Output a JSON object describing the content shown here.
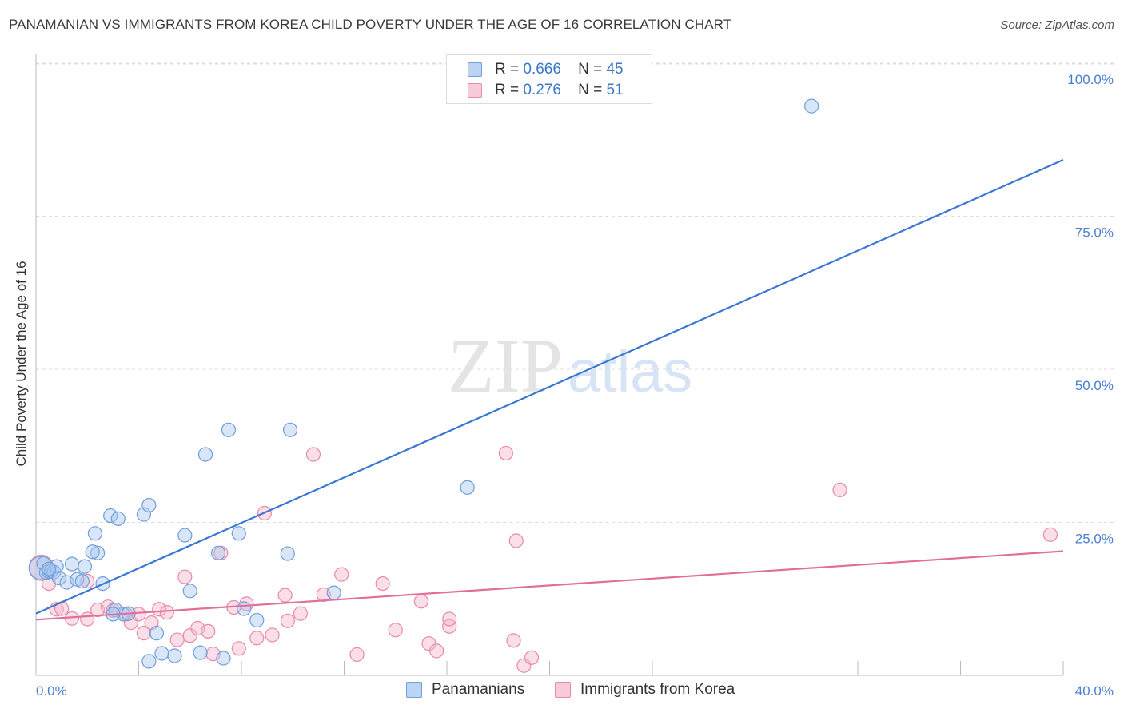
{
  "header": {
    "title": "PANAMANIAN VS IMMIGRANTS FROM KOREA CHILD POVERTY UNDER THE AGE OF 16 CORRELATION CHART",
    "source": "Source: ZipAtlas.com"
  },
  "watermark": {
    "zip": "ZIP",
    "atlas": "atlas"
  },
  "legend_top": {
    "rows": [
      {
        "r_label": "R =",
        "r_value": "0.666",
        "n_label": "N =",
        "n_value": "45"
      },
      {
        "r_label": "R =",
        "r_value": "0.276",
        "n_label": "N =",
        "n_value": "51"
      }
    ]
  },
  "colors": {
    "blue_fill": "#a9c8f0",
    "blue_stroke": "#6f9fdc",
    "blue_line": "#3a78d4",
    "pink_fill": "#f5b8cb",
    "pink_stroke": "#e98aa8",
    "pink_line": "#e0709a",
    "tick_label": "#4a7fd0",
    "grid": "#dddddd"
  },
  "chart_data": {
    "type": "scatter",
    "title": "PANAMANIAN VS IMMIGRANTS FROM KOREA CHILD POVERTY UNDER THE AGE OF 16 CORRELATION CHART",
    "xlabel": "",
    "ylabel": "Child Poverty Under the Age of 16",
    "xlim": [
      0,
      40
    ],
    "ylim": [
      0,
      100
    ],
    "x_tick_labels": [
      {
        "value": 0,
        "label": "0.0%"
      },
      {
        "value": 40,
        "label": "40.0%"
      }
    ],
    "y_tick_labels": [
      {
        "value": 100,
        "label": "100.0%"
      },
      {
        "value": 75,
        "label": "75.0%"
      },
      {
        "value": 50,
        "label": "50.0%"
      },
      {
        "value": 25,
        "label": "25.0%"
      }
    ],
    "grid": true,
    "legend_position": "top-center",
    "series": [
      {
        "name": "Panamanians",
        "color": "#6f9fdc",
        "r": 0.666,
        "n": 45,
        "trend": {
          "x": [
            0,
            40
          ],
          "y": [
            10.1,
            84.2
          ]
        },
        "points": [
          [
            0.2,
            17.5
          ],
          [
            0.3,
            18.3
          ],
          [
            0.4,
            16.8
          ],
          [
            0.5,
            17.0
          ],
          [
            0.6,
            17.1
          ],
          [
            0.7,
            16.9
          ],
          [
            0.8,
            17.8
          ],
          [
            0.9,
            15.9
          ],
          [
            1.2,
            15.2
          ],
          [
            1.4,
            18.2
          ],
          [
            1.6,
            15.7
          ],
          [
            1.9,
            17.8
          ],
          [
            2.3,
            23.2
          ],
          [
            2.4,
            20.0
          ],
          [
            2.6,
            15.0
          ],
          [
            2.9,
            26.1
          ],
          [
            2.2,
            20.2
          ],
          [
            3.2,
            25.6
          ],
          [
            3.4,
            10.0
          ],
          [
            3.6,
            10.1
          ],
          [
            3.1,
            10.7
          ],
          [
            4.2,
            26.3
          ],
          [
            4.4,
            27.8
          ],
          [
            4.4,
            2.3
          ],
          [
            4.7,
            6.9
          ],
          [
            4.9,
            3.6
          ],
          [
            5.4,
            3.2
          ],
          [
            5.8,
            22.9
          ],
          [
            6.0,
            13.8
          ],
          [
            6.4,
            3.7
          ],
          [
            6.6,
            36.1
          ],
          [
            7.1,
            20.0
          ],
          [
            7.3,
            2.8
          ],
          [
            7.5,
            40.1
          ],
          [
            7.9,
            23.2
          ],
          [
            8.1,
            10.9
          ],
          [
            8.6,
            9.0
          ],
          [
            9.8,
            19.9
          ],
          [
            9.9,
            40.1
          ],
          [
            11.6,
            13.5
          ],
          [
            16.8,
            30.7
          ],
          [
            30.2,
            93.0
          ],
          [
            1.8,
            15.4
          ],
          [
            3.0,
            10.0
          ],
          [
            0.5,
            17.4
          ]
        ]
      },
      {
        "name": "Immigrants from Korea",
        "color": "#e98aa8",
        "r": 0.276,
        "n": 51,
        "trend": {
          "x": [
            0,
            40
          ],
          "y": [
            9.1,
            20.3
          ]
        },
        "points": [
          [
            0.2,
            17.7
          ],
          [
            0.5,
            15.0
          ],
          [
            0.8,
            10.8
          ],
          [
            1.0,
            10.9
          ],
          [
            1.4,
            9.3
          ],
          [
            2.0,
            9.2
          ],
          [
            2.4,
            10.7
          ],
          [
            2.8,
            11.2
          ],
          [
            3.0,
            10.6
          ],
          [
            3.5,
            10.0
          ],
          [
            3.7,
            8.6
          ],
          [
            4.0,
            10.0
          ],
          [
            4.2,
            6.9
          ],
          [
            4.5,
            8.6
          ],
          [
            4.8,
            10.8
          ],
          [
            5.1,
            10.3
          ],
          [
            5.5,
            5.8
          ],
          [
            5.8,
            16.1
          ],
          [
            6.0,
            6.5
          ],
          [
            6.3,
            7.7
          ],
          [
            6.7,
            7.2
          ],
          [
            6.9,
            3.5
          ],
          [
            7.2,
            20.0
          ],
          [
            7.7,
            11.1
          ],
          [
            7.9,
            4.4
          ],
          [
            8.2,
            11.7
          ],
          [
            8.6,
            6.1
          ],
          [
            8.9,
            26.5
          ],
          [
            9.2,
            6.6
          ],
          [
            9.7,
            13.1
          ],
          [
            9.8,
            8.9
          ],
          [
            10.3,
            10.1
          ],
          [
            10.8,
            36.1
          ],
          [
            11.2,
            13.2
          ],
          [
            11.9,
            16.5
          ],
          [
            12.5,
            3.4
          ],
          [
            13.5,
            15.0
          ],
          [
            14.0,
            7.4
          ],
          [
            15.0,
            12.1
          ],
          [
            15.3,
            5.2
          ],
          [
            15.6,
            4.0
          ],
          [
            16.1,
            8.0
          ],
          [
            16.1,
            9.2
          ],
          [
            18.3,
            36.3
          ],
          [
            18.6,
            5.7
          ],
          [
            18.7,
            22.0
          ],
          [
            19.0,
            1.6
          ],
          [
            19.3,
            2.9
          ],
          [
            31.3,
            30.3
          ],
          [
            39.5,
            23.0
          ],
          [
            2.0,
            15.4
          ]
        ]
      }
    ]
  },
  "legend_bottom": {
    "items": [
      {
        "label": "Panamanians"
      },
      {
        "label": "Immigrants from Korea"
      }
    ]
  }
}
